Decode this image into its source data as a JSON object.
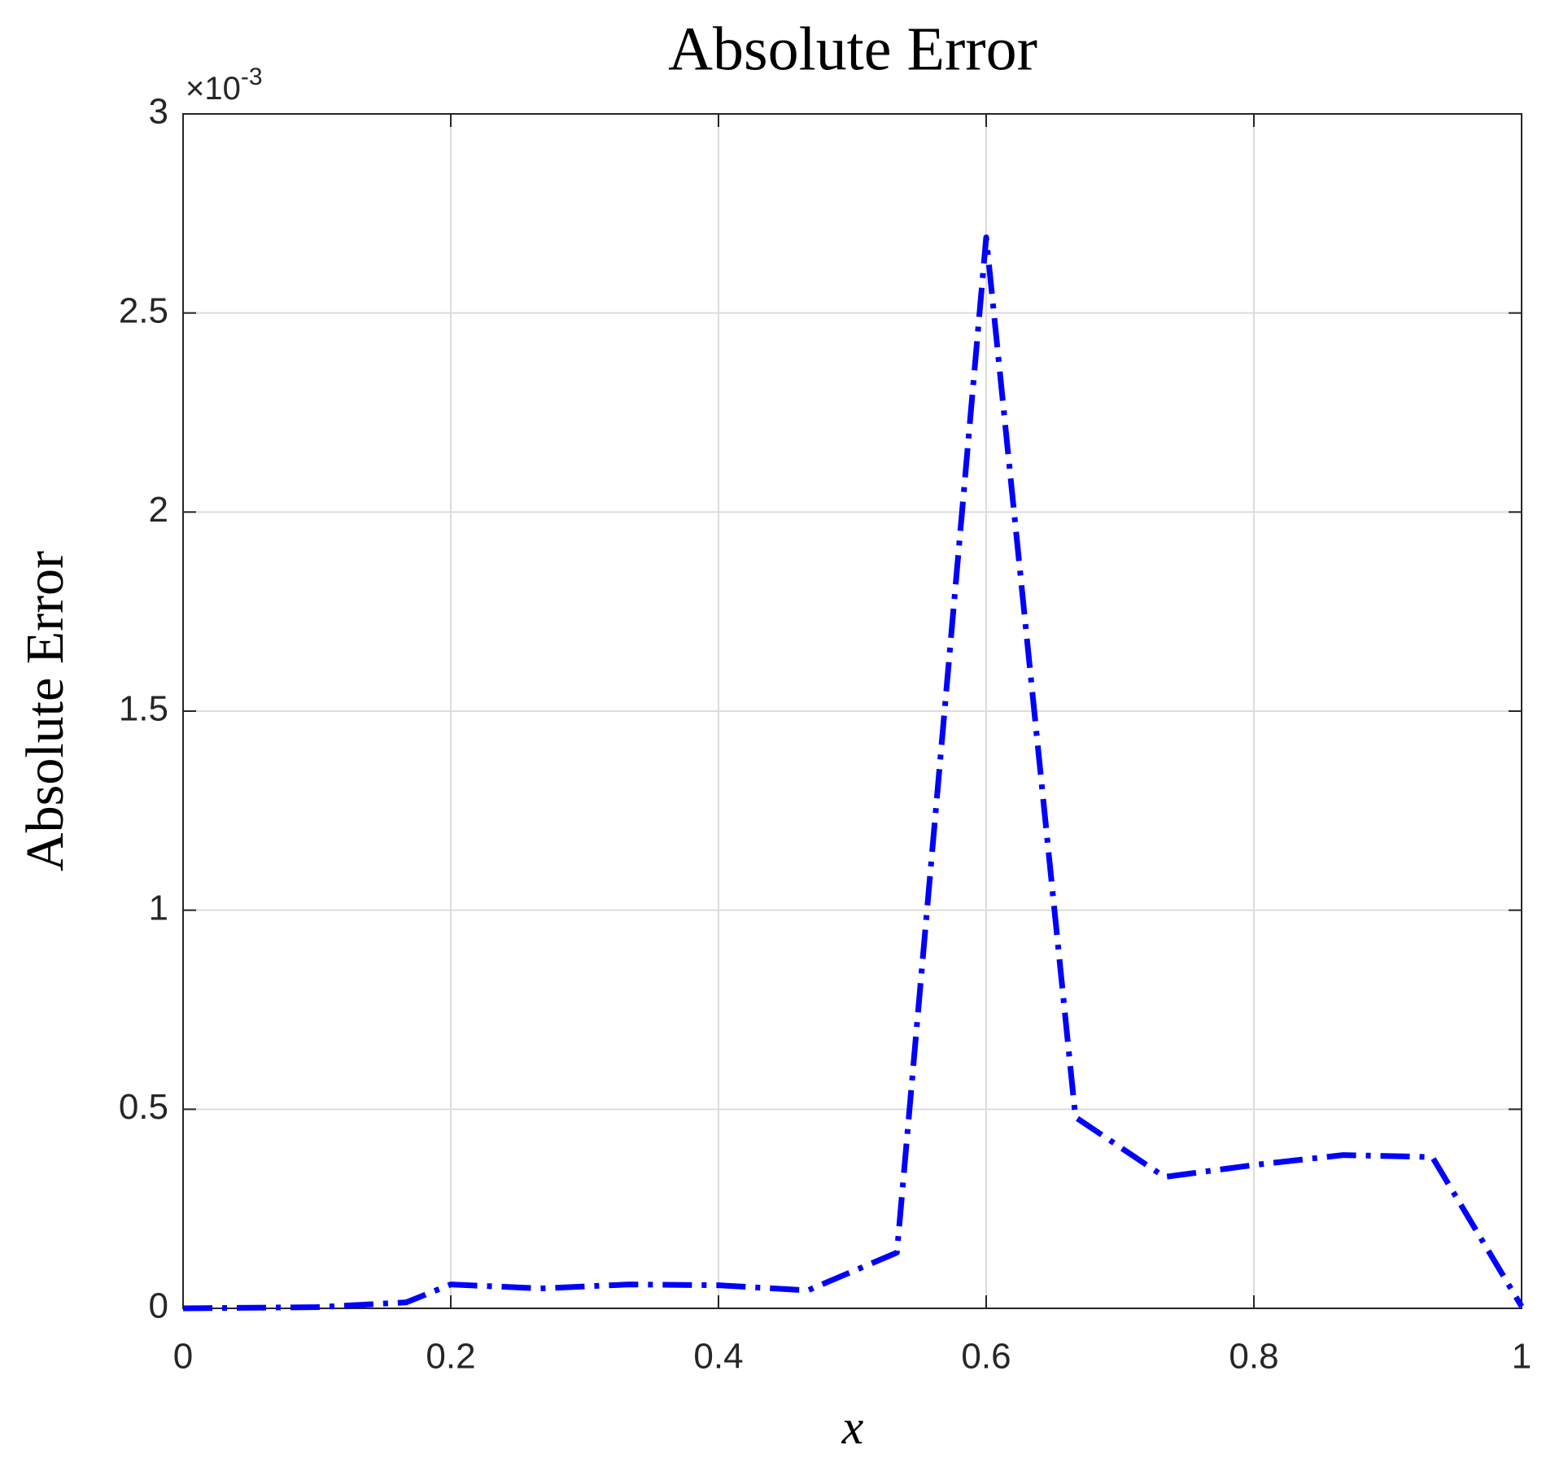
{
  "chart_data": {
    "type": "line",
    "title": "Absolute Error",
    "x_label": "x",
    "y_label": "Absolute Error",
    "y_multiplier": {
      "base": "×10",
      "exponent": "-3"
    },
    "x": [
      0,
      0.1,
      0.1667,
      0.2,
      0.2667,
      0.3333,
      0.4,
      0.4667,
      0.5333,
      0.6,
      0.6667,
      0.7333,
      0.8,
      0.8667,
      0.9333,
      1
    ],
    "series": [
      {
        "color": "#0000ff",
        "values": [
          0,
          0.003,
          0.015,
          0.06,
          0.05,
          0.06,
          0.058,
          0.045,
          0.14,
          2.69,
          0.48,
          0.33,
          0.36,
          0.385,
          0.38,
          0.005
        ]
      }
    ],
    "xlim": [
      0,
      1
    ],
    "xticks": [
      0,
      0.2,
      0.4,
      0.6,
      0.8,
      1
    ],
    "ylim": [
      0,
      3
    ],
    "yticks": [
      0,
      0.5,
      1,
      1.5,
      2,
      2.5,
      3
    ],
    "grid": true
  }
}
